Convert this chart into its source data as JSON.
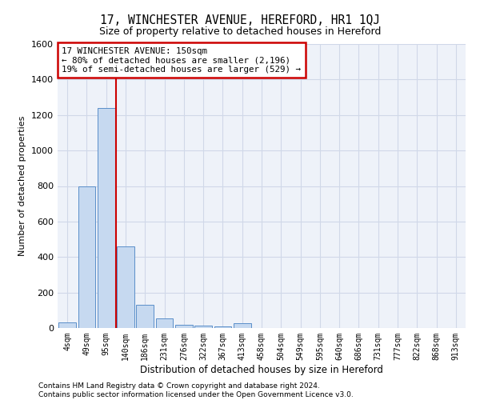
{
  "title": "17, WINCHESTER AVENUE, HEREFORD, HR1 1QJ",
  "subtitle": "Size of property relative to detached houses in Hereford",
  "xlabel": "Distribution of detached houses by size in Hereford",
  "ylabel": "Number of detached properties",
  "footer_line1": "Contains HM Land Registry data © Crown copyright and database right 2024.",
  "footer_line2": "Contains public sector information licensed under the Open Government Licence v3.0.",
  "bar_labels": [
    "4sqm",
    "49sqm",
    "95sqm",
    "140sqm",
    "186sqm",
    "231sqm",
    "276sqm",
    "322sqm",
    "367sqm",
    "413sqm",
    "458sqm",
    "504sqm",
    "549sqm",
    "595sqm",
    "640sqm",
    "686sqm",
    "731sqm",
    "777sqm",
    "822sqm",
    "868sqm",
    "913sqm"
  ],
  "bar_values": [
    30,
    800,
    1240,
    460,
    130,
    55,
    20,
    13,
    10,
    28,
    0,
    0,
    0,
    0,
    0,
    0,
    0,
    0,
    0,
    0,
    0
  ],
  "bar_color": "#c6d9f0",
  "bar_edge_color": "#5b8fc9",
  "vline_x_index": 3,
  "vline_color": "#cc0000",
  "ylim": [
    0,
    1600
  ],
  "yticks": [
    0,
    200,
    400,
    600,
    800,
    1000,
    1200,
    1400,
    1600
  ],
  "annotation_line1": "17 WINCHESTER AVENUE: 150sqm",
  "annotation_line2": "← 80% of detached houses are smaller (2,196)",
  "annotation_line3": "19% of semi-detached houses are larger (529) →",
  "annotation_box_edge_color": "#cc0000",
  "grid_color": "#d0d8e8",
  "background_color": "#eef2f9"
}
